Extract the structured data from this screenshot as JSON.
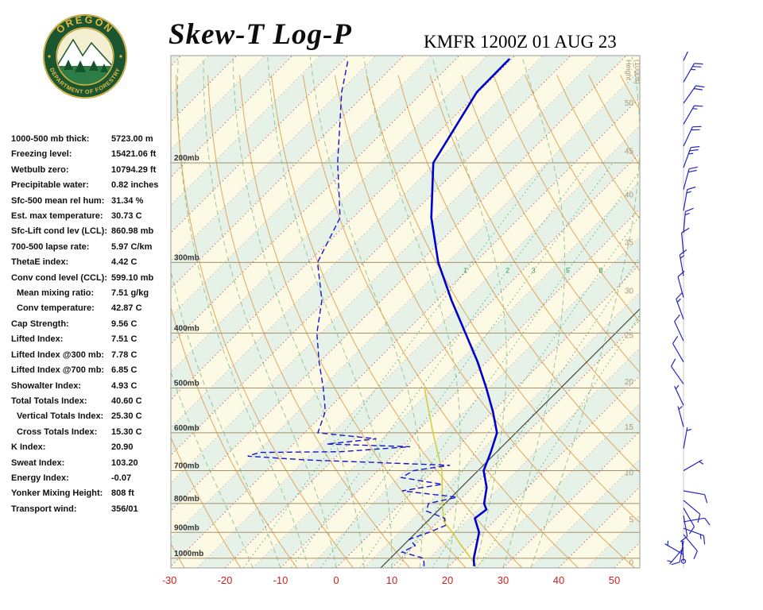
{
  "header": {
    "title": "Skew-T Log-P",
    "station": "KMFR 1200Z 01 AUG 23"
  },
  "logo": {
    "top_text": "OREGON",
    "bottom_text": "DEPARTMENT OF FORESTRY",
    "ring_color": "#1a5632",
    "gold": "#e9b93c"
  },
  "indices": [
    {
      "label": "1000-500 mb thick:",
      "value": "5723.00 m",
      "indent": false
    },
    {
      "label": "Freezing level:",
      "value": "15421.06 ft",
      "indent": false
    },
    {
      "label": "Wetbulb zero:",
      "value": "10794.29 ft",
      "indent": false
    },
    {
      "label": "Precipitable water:",
      "value": "0.82 inches",
      "indent": false
    },
    {
      "label": "Sfc-500 mean rel hum:",
      "value": "31.34 %",
      "indent": false
    },
    {
      "label": "Est. max temperature:",
      "value": "30.73 C",
      "indent": false
    },
    {
      "label": "Sfc-Lift cond lev (LCL):",
      "value": "860.98 mb",
      "indent": false
    },
    {
      "label": "700-500 lapse rate:",
      "value": "5.97 C/km",
      "indent": false
    },
    {
      "label": "ThetaE index:",
      "value": "4.42 C",
      "indent": false
    },
    {
      "label": "Conv cond level (CCL):",
      "value": "599.10 mb",
      "indent": false
    },
    {
      "label": "Mean mixing ratio:",
      "value": "7.51 g/kg",
      "indent": true
    },
    {
      "label": "Conv temperature:",
      "value": "42.87 C",
      "indent": true
    },
    {
      "label": "Cap Strength:",
      "value": "9.56 C",
      "indent": false
    },
    {
      "label": "Lifted Index:",
      "value": "7.51 C",
      "indent": false
    },
    {
      "label": "Lifted Index @300 mb:",
      "value": "7.78 C",
      "indent": false
    },
    {
      "label": "Lifted Index @700 mb:",
      "value": "6.85 C",
      "indent": false
    },
    {
      "label": "Showalter Index:",
      "value": "4.93 C",
      "indent": false
    },
    {
      "label": "Total Totals Index:",
      "value": "40.60 C",
      "indent": false
    },
    {
      "label": "Vertical Totals Index:",
      "value": "25.30 C",
      "indent": true
    },
    {
      "label": "Cross Totals Index:",
      "value": "15.30 C",
      "indent": true
    },
    {
      "label": "K Index:",
      "value": "20.90",
      "indent": false
    },
    {
      "label": "Sweat Index:",
      "value": "103.20",
      "indent": false
    },
    {
      "label": "Energy Index:",
      "value": "-0.07",
      "indent": false
    },
    {
      "label": "Yonker Mixing Height:",
      "value": "808 ft",
      "indent": false
    },
    {
      "label": "Transport wind:",
      "value": "356/01",
      "indent": false
    }
  ],
  "chart_data": {
    "type": "skewt",
    "title": "Skew-T Log-P",
    "station": "KMFR 1200Z 01 AUG 23",
    "pressure_range": [
      130,
      1040
    ],
    "x_axis": {
      "ticks": [
        -30,
        -20,
        -10,
        0,
        10,
        20,
        30,
        40,
        50
      ],
      "unit": "C"
    },
    "pressure_lines": [
      200,
      300,
      400,
      500,
      600,
      700,
      800,
      900,
      1000
    ],
    "pressure_label_suffix": "mb",
    "height_axis": {
      "title": "Height",
      "subtitle": "(1000ft)",
      "labels": [
        {
          "v": 50,
          "p": 157
        },
        {
          "v": 45,
          "p": 191
        },
        {
          "v": 40,
          "p": 228
        },
        {
          "v": 35,
          "p": 277
        },
        {
          "v": 30,
          "p": 337
        },
        {
          "v": 25,
          "p": 404
        },
        {
          "v": 20,
          "p": 488
        },
        {
          "v": 15,
          "p": 587
        },
        {
          "v": 10,
          "p": 707
        },
        {
          "v": 5,
          "p": 855
        },
        {
          "v": 0,
          "p": 1018
        }
      ]
    },
    "isotherms": {
      "min": -120,
      "max": 60,
      "step": 5
    },
    "highlight_isotherm": 8,
    "dry_adiabats": {
      "min": -30,
      "max": 180,
      "step": 10
    },
    "moist_adiabats": [
      -15,
      -10,
      -5,
      0,
      5,
      10,
      15,
      20,
      25,
      30,
      35
    ],
    "mixing_ratio_lines": [
      1,
      2,
      3,
      5,
      8,
      12,
      20
    ],
    "mixing_ratio_labels": [
      1,
      2,
      3,
      5,
      8
    ],
    "mixing_label_pressure": 310,
    "temperature_profile": [
      [
        1033,
        24.5
      ],
      [
        1000,
        23.0
      ],
      [
        950,
        21.2
      ],
      [
        900,
        19.3
      ],
      [
        850,
        16.0
      ],
      [
        820,
        16.5
      ],
      [
        800,
        15.0
      ],
      [
        750,
        12.6
      ],
      [
        700,
        9.0
      ],
      [
        650,
        7.0
      ],
      [
        600,
        4.6
      ],
      [
        550,
        0.0
      ],
      [
        500,
        -5.4
      ],
      [
        450,
        -11.6
      ],
      [
        400,
        -19.0
      ],
      [
        350,
        -27.4
      ],
      [
        300,
        -36.6
      ],
      [
        250,
        -45.9
      ],
      [
        200,
        -55.4
      ],
      [
        150,
        -60.3
      ],
      [
        131,
        -60.4
      ]
    ],
    "dewpoint_profile": [
      [
        1033,
        15.5
      ],
      [
        1000,
        14.0
      ],
      [
        975,
        9.0
      ],
      [
        950,
        10.2
      ],
      [
        925,
        8.0
      ],
      [
        900,
        10.3
      ],
      [
        875,
        12.0
      ],
      [
        850,
        10.6
      ],
      [
        825,
        6.0
      ],
      [
        800,
        5.0
      ],
      [
        780,
        9.0
      ],
      [
        760,
        -2.0
      ],
      [
        740,
        4.0
      ],
      [
        720,
        -4.5
      ],
      [
        700,
        -3.6
      ],
      [
        685,
        2.0
      ],
      [
        670,
        -25.0
      ],
      [
        660,
        -36.0
      ],
      [
        650,
        -34.5
      ],
      [
        648,
        -20.0
      ],
      [
        635,
        -8.5
      ],
      [
        628,
        -24.0
      ],
      [
        615,
        -16.0
      ],
      [
        600,
        -27.6
      ],
      [
        550,
        -30.1
      ],
      [
        500,
        -34.7
      ],
      [
        450,
        -40.1
      ],
      [
        400,
        -45.7
      ],
      [
        350,
        -50.7
      ],
      [
        300,
        -58.3
      ],
      [
        250,
        -62.3
      ],
      [
        200,
        -72.6
      ],
      [
        150,
        -84.6
      ],
      [
        131,
        -89.4
      ]
    ],
    "parcel_profile": [
      [
        1020,
        24.0
      ],
      [
        950,
        18.5
      ],
      [
        900,
        14.5
      ],
      [
        861,
        11.0
      ],
      [
        800,
        7.5
      ],
      [
        700,
        1.5
      ],
      [
        600,
        -6.9
      ],
      [
        550,
        -11.5
      ],
      [
        500,
        -16.5
      ]
    ],
    "wind_barbs": [
      {
        "p": 132,
        "dir": 25,
        "speed": 20
      },
      {
        "p": 144,
        "dir": 30,
        "speed": 25
      },
      {
        "p": 157,
        "dir": 35,
        "speed": 20
      },
      {
        "p": 171,
        "dir": 30,
        "speed": 15
      },
      {
        "p": 187,
        "dir": 25,
        "speed": 20
      },
      {
        "p": 204,
        "dir": 20,
        "speed": 25
      },
      {
        "p": 223,
        "dir": 15,
        "speed": 20
      },
      {
        "p": 243,
        "dir": 10,
        "speed": 15
      },
      {
        "p": 266,
        "dir": 5,
        "speed": 15
      },
      {
        "p": 290,
        "dir": 355,
        "speed": 10
      },
      {
        "p": 317,
        "dir": 350,
        "speed": 15
      },
      {
        "p": 346,
        "dir": 345,
        "speed": 10
      },
      {
        "p": 378,
        "dir": 340,
        "speed": 15
      },
      {
        "p": 413,
        "dir": 335,
        "speed": 10
      },
      {
        "p": 450,
        "dir": 330,
        "speed": 10
      },
      {
        "p": 492,
        "dir": 325,
        "speed": 10
      },
      {
        "p": 537,
        "dir": 335,
        "speed": 5
      },
      {
        "p": 586,
        "dir": 345,
        "speed": 5
      },
      {
        "p": 640,
        "dir": 10,
        "speed": 5
      },
      {
        "p": 700,
        "dir": 60,
        "speed": 5
      },
      {
        "p": 760,
        "dir": 100,
        "speed": 8
      },
      {
        "p": 790,
        "dir": 130,
        "speed": 12
      },
      {
        "p": 815,
        "dir": 150,
        "speed": 10
      },
      {
        "p": 840,
        "dir": 170,
        "speed": 12
      },
      {
        "p": 862,
        "dir": 80,
        "speed": 10
      },
      {
        "p": 885,
        "dir": 110,
        "speed": 15
      },
      {
        "p": 908,
        "dir": 140,
        "speed": 10
      },
      {
        "p": 932,
        "dir": 190,
        "speed": 8
      },
      {
        "p": 958,
        "dir": 220,
        "speed": 5
      },
      {
        "p": 985,
        "dir": 300,
        "speed": 3
      },
      {
        "p": 1012,
        "dir": 356,
        "speed": 2
      }
    ],
    "colors": {
      "band_a": "#fcf9e4",
      "band_b": "#e6f2e8",
      "isotherm": "#c0504d",
      "highlight": "#333333",
      "dry_adiabat": "#dd9f4d",
      "moist_adiabat": "#7cb87c",
      "mixing": "#3aa06a",
      "pressure_line": "#a3906a",
      "pressure_label": "#333333",
      "temp": "#0000cc",
      "dewpoint": "#1515cc",
      "parcel": "#d6cc3f",
      "axis_label": "#cc2222",
      "height_label": "#a89878",
      "barb": "#2525bb",
      "border": "#999999"
    }
  }
}
